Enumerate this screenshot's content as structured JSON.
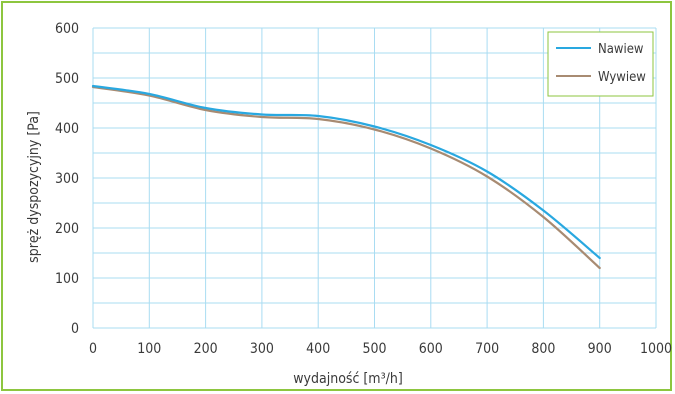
{
  "chart_data": {
    "type": "line",
    "xlabel": "wydajność [m³/h]",
    "ylabel": "spręż dyspozycyjny [Pa]",
    "xlim": [
      0,
      1000
    ],
    "ylim": [
      0,
      600
    ],
    "xticks": [
      0,
      100,
      200,
      300,
      400,
      500,
      600,
      700,
      800,
      900,
      1000
    ],
    "yticks": [
      0,
      100,
      200,
      300,
      400,
      500,
      600
    ],
    "grid": true,
    "legend_position": "top-right",
    "series": [
      {
        "name": "Nawiew",
        "color": "#29a8e0",
        "x": [
          0,
          100,
          200,
          300,
          400,
          500,
          600,
          700,
          800,
          900
        ],
        "values": [
          484,
          468,
          440,
          427,
          424,
          403,
          366,
          313,
          235,
          140
        ]
      },
      {
        "name": "Wywiew",
        "color": "#a88b72",
        "x": [
          0,
          100,
          200,
          300,
          400,
          500,
          600,
          700,
          800,
          900
        ],
        "values": [
          482,
          465,
          436,
          422,
          418,
          397,
          359,
          303,
          222,
          120
        ]
      }
    ]
  },
  "colors": {
    "grid": "#a9dcf2",
    "frame_border": "#8dc63f",
    "text": "#3a3a3a"
  }
}
